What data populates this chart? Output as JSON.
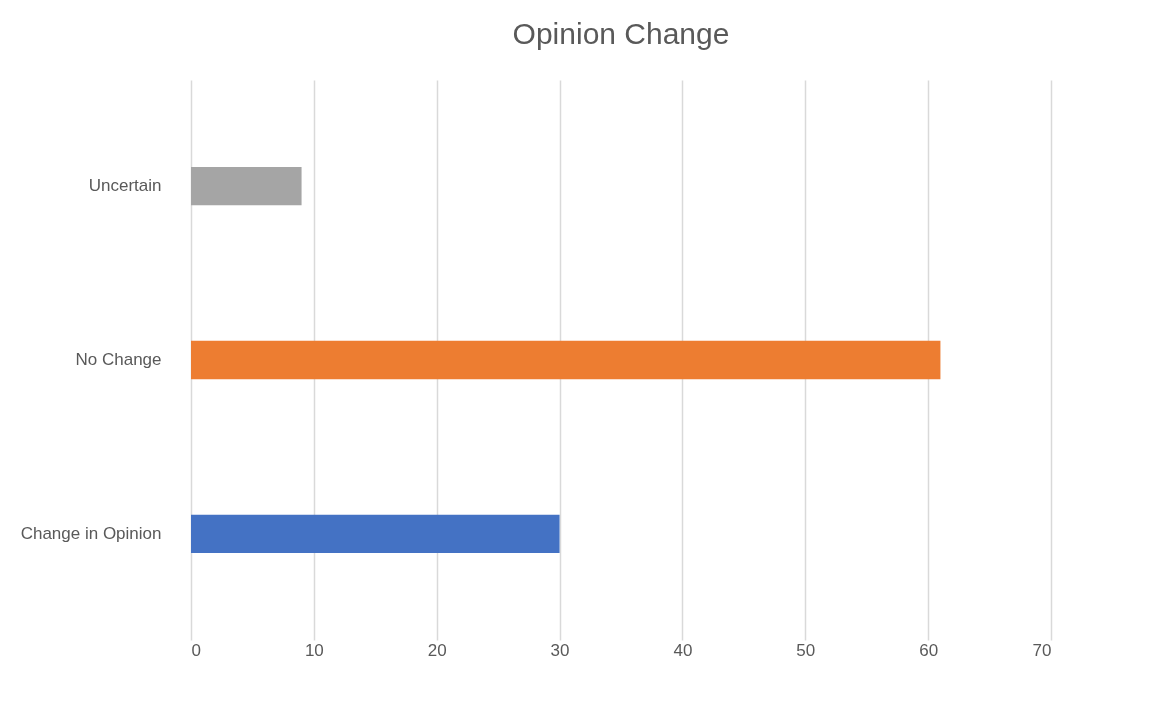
{
  "chart_data": {
    "type": "bar",
    "orientation": "horizontal",
    "title": "Opinion Change",
    "categories": [
      "Uncertain",
      "No Change",
      "Change in Opinion"
    ],
    "values": [
      9,
      61,
      30
    ],
    "colors": [
      "#a5a5a5",
      "#ed7d31",
      "#4472c4"
    ],
    "xlim": [
      0,
      70
    ],
    "xticks": [
      0,
      10,
      20,
      30,
      40,
      50,
      60,
      70
    ],
    "grid": "x",
    "legend": false
  }
}
